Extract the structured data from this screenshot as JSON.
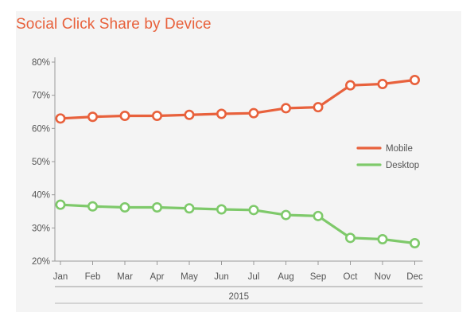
{
  "chart_data": {
    "type": "line",
    "title": "Social Click Share by Device",
    "categories": [
      "Jan",
      "Feb",
      "Mar",
      "Apr",
      "May",
      "Jun",
      "Jul",
      "Aug",
      "Sep",
      "Oct",
      "Nov",
      "Dec"
    ],
    "x_group_label": "2015",
    "ylim": [
      20,
      80
    ],
    "yticks": [
      "20%",
      "30%",
      "40%",
      "50%",
      "60%",
      "70%",
      "80%"
    ],
    "ytick_values": [
      20,
      30,
      40,
      50,
      60,
      70,
      80
    ],
    "grid": false,
    "legend_position": "right",
    "series": [
      {
        "name": "Mobile",
        "color": "#e8613c",
        "values": [
          63.0,
          63.5,
          63.8,
          63.8,
          64.1,
          64.4,
          64.6,
          66.1,
          66.4,
          73.0,
          73.4,
          74.6
        ]
      },
      {
        "name": "Desktop",
        "color": "#7ec96a",
        "values": [
          37.0,
          36.5,
          36.2,
          36.2,
          35.9,
          35.6,
          35.4,
          33.9,
          33.6,
          27.0,
          26.6,
          25.4
        ]
      }
    ]
  }
}
